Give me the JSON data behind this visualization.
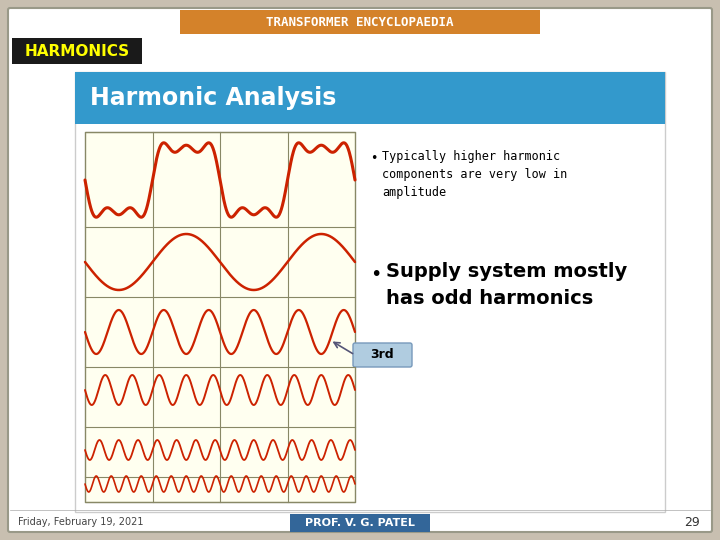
{
  "bg_color": "#c8bfb0",
  "slide_bg": "#f0ece4",
  "title_bar_color": "#d4822a",
  "title_text": "TRANSFORMER ENCYCLOPAEDIA",
  "title_text_color": "#ffffff",
  "harmonics_bg": "#1a1a1a",
  "harmonics_text": "HARMONICS",
  "harmonics_text_color": "#ffff00",
  "content_bg": "#ffffff",
  "header_bg": "#3399cc",
  "header_text": "Harmonic Analysis",
  "header_text_color": "#ffffff",
  "wave_bg": "#fffff0",
  "wave_color": "#cc2200",
  "grid_color": "#888866",
  "bullet1": "Typically higher harmonic\ncomponents are very low in\namplitude",
  "bullet2": "Supply system mostly\nhas odd harmonics",
  "label_3rd": "3rd",
  "label_3rd_bg": "#b0cce0",
  "footer_text": "Friday, February 19, 2021",
  "footer_label": "PROF. V. G. PATEL",
  "footer_label_bg": "#336699",
  "footer_label_color": "#ffffff",
  "page_num": "29"
}
